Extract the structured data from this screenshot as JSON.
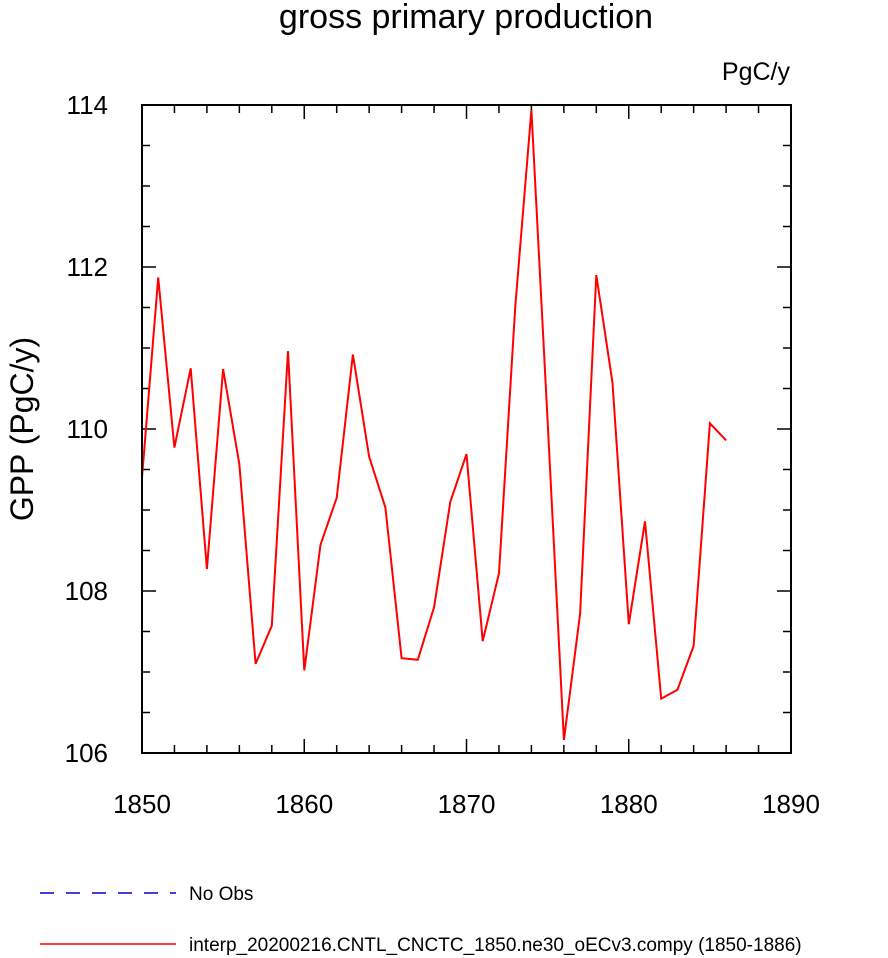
{
  "chart_data": {
    "type": "line",
    "title": "gross primary production",
    "units_label": "PgC/y",
    "ylabel": "GPP  (PgC/y)",
    "xlabel": "",
    "xlim": [
      1850,
      1890
    ],
    "ylim": [
      106,
      114
    ],
    "x_ticks": [
      1850,
      1860,
      1870,
      1880,
      1890
    ],
    "y_ticks": [
      106,
      108,
      110,
      112,
      114
    ],
    "x_minor_step": 2,
    "y_minor_step": 0.5,
    "grid": false,
    "legend_position": "bottom-left",
    "series": [
      {
        "name": "interp_20200216.CNTL_CNCTC_1850.ne30_oECv3.compy (1850-1886)",
        "color": "#ff0000",
        "dash": "solid",
        "x": [
          1850,
          1851,
          1852,
          1853,
          1854,
          1855,
          1856,
          1857,
          1858,
          1859,
          1860,
          1861,
          1862,
          1863,
          1864,
          1865,
          1866,
          1867,
          1868,
          1869,
          1870,
          1871,
          1872,
          1873,
          1874,
          1875,
          1876,
          1877,
          1878,
          1879,
          1880,
          1881,
          1882,
          1883,
          1884,
          1885,
          1886
        ],
        "values": [
          109.4,
          111.87,
          109.77,
          110.75,
          108.27,
          110.74,
          109.57,
          107.1,
          107.57,
          110.96,
          107.02,
          108.57,
          109.15,
          110.92,
          109.66,
          109.03,
          107.17,
          107.15,
          107.8,
          109.1,
          109.69,
          107.38,
          108.22,
          111.5,
          113.94,
          110.1,
          106.16,
          107.72,
          111.9,
          110.57,
          107.59,
          108.86,
          106.67,
          106.78,
          107.32,
          110.07,
          109.86
        ]
      }
    ],
    "legend": [
      {
        "label": "No Obs",
        "color": "#0000cc",
        "dash": "dashed"
      },
      {
        "label": "interp_20200216.CNTL_CNCTC_1850.ne30_oECv3.compy (1850-1886)",
        "color": "#ff0000",
        "dash": "solid"
      }
    ]
  }
}
